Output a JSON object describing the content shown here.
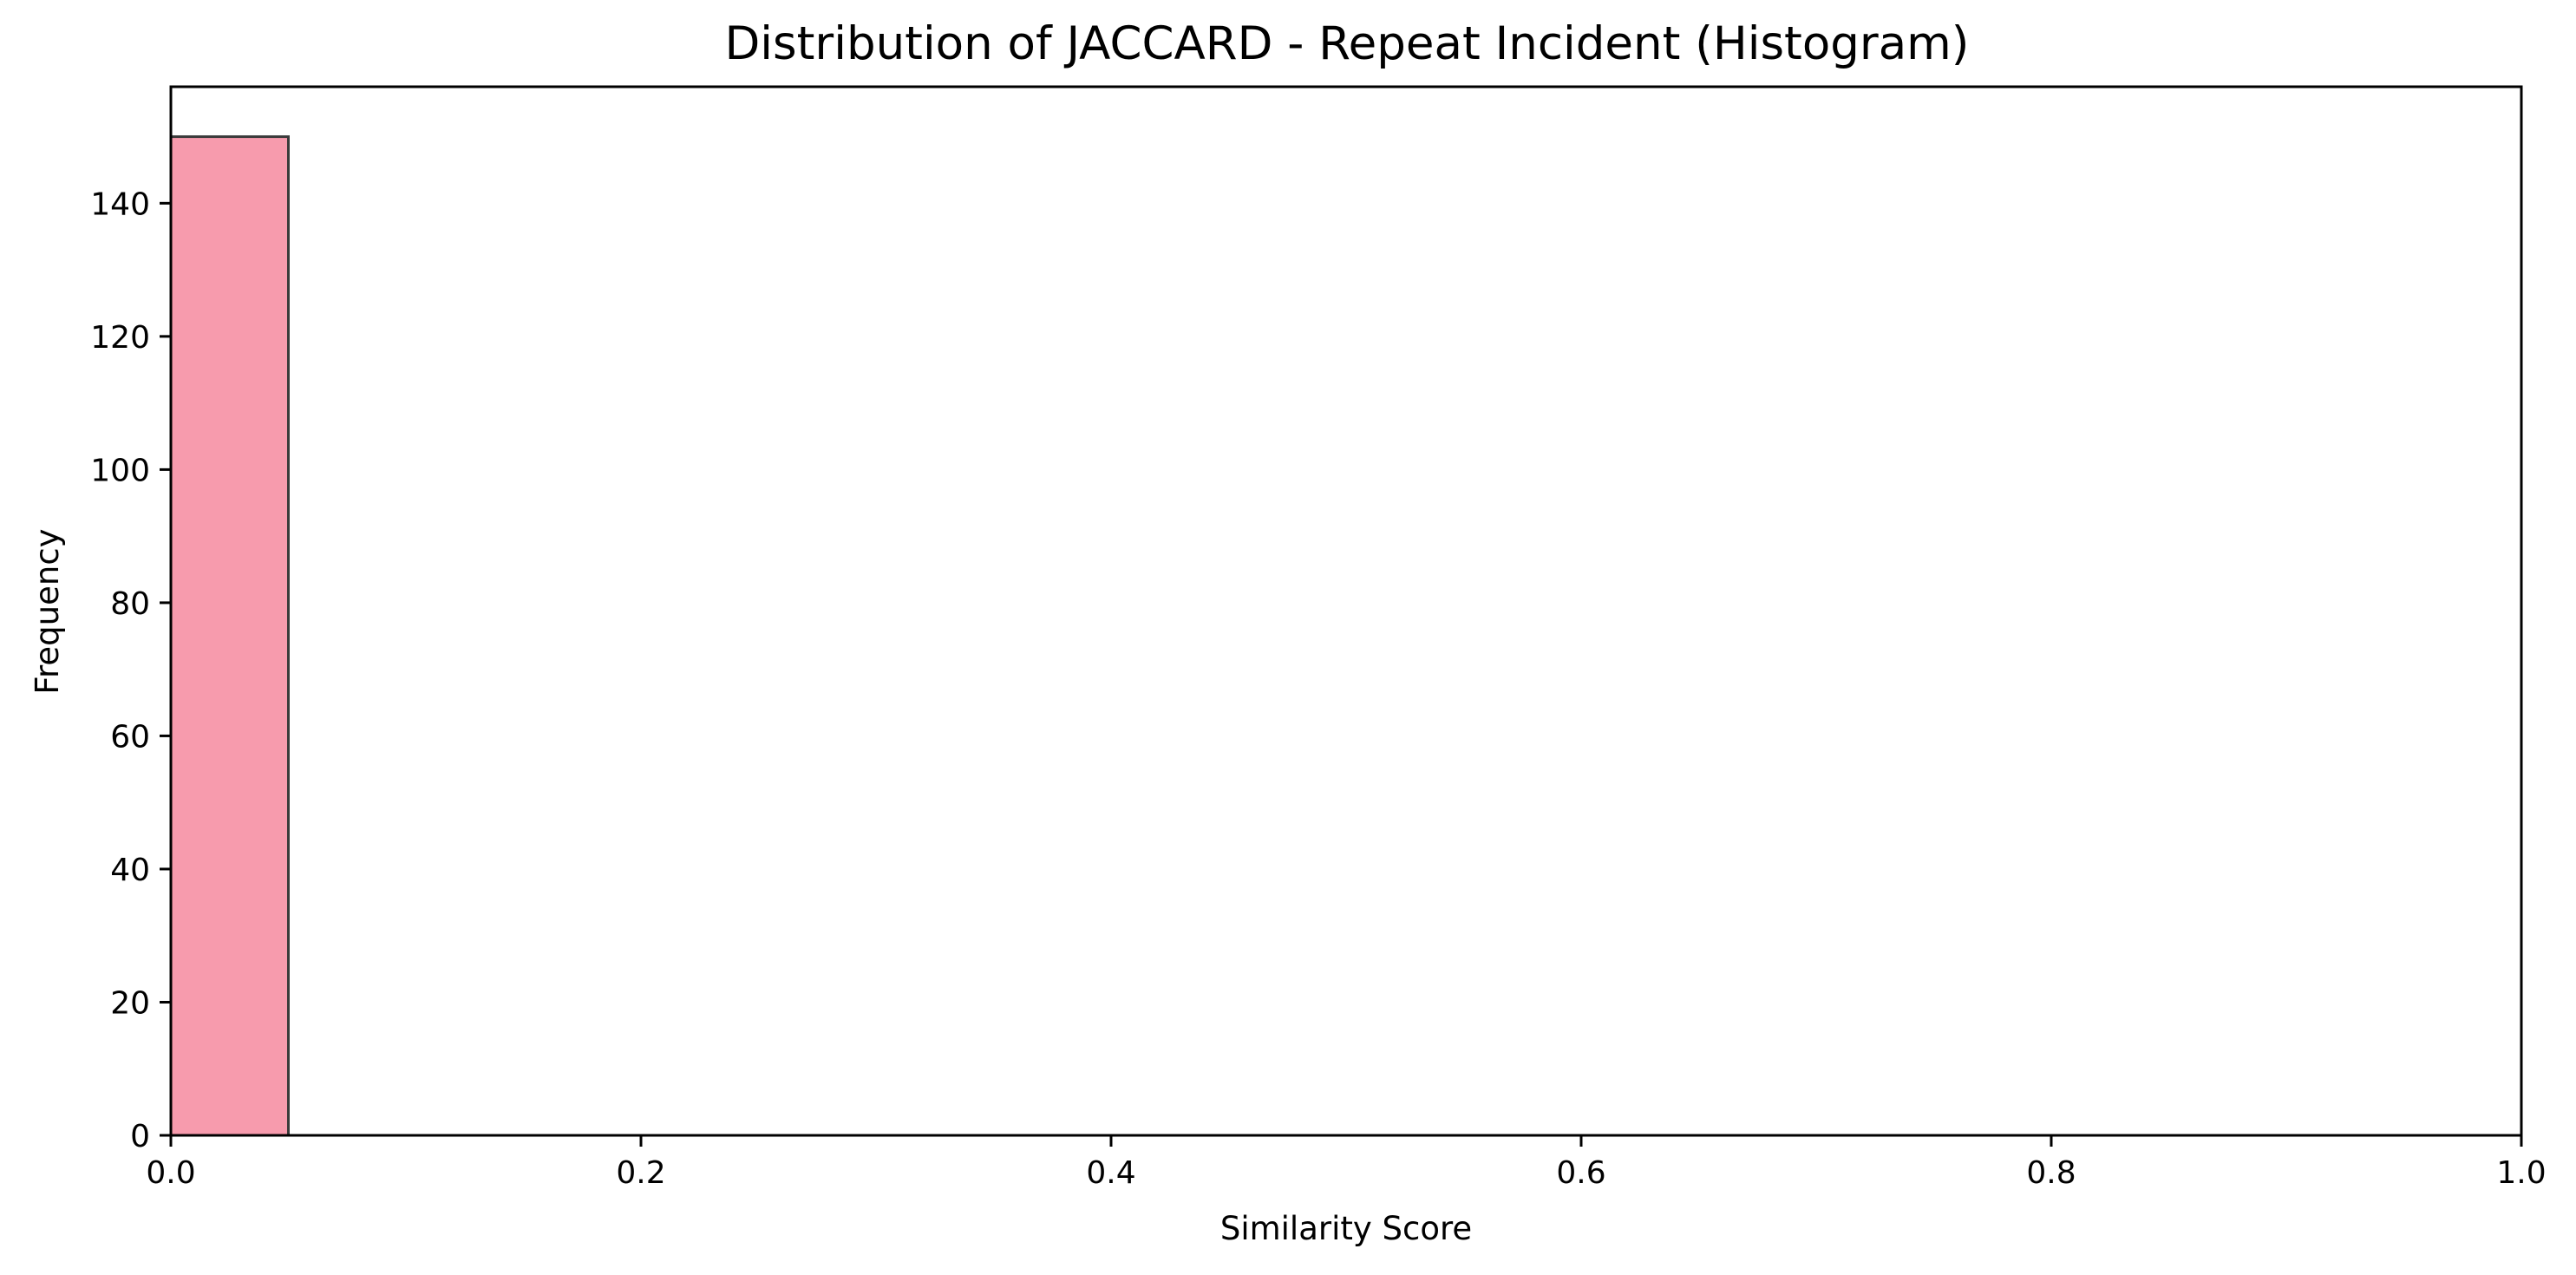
{
  "chart_data": {
    "type": "bar",
    "title": "Distribution of JACCARD - Repeat Incident (Histogram)",
    "xlabel": "Similarity Score",
    "ylabel": "Frequency",
    "xlim": [
      0.0,
      1.0
    ],
    "ylim": [
      0,
      157.5
    ],
    "x_ticks": [
      "0.0",
      "0.2",
      "0.4",
      "0.6",
      "0.8",
      "1.0"
    ],
    "y_ticks": [
      "0",
      "20",
      "40",
      "60",
      "80",
      "100",
      "120",
      "140"
    ],
    "bins": [
      {
        "start": 0.0,
        "end": 0.05,
        "count": 150
      }
    ],
    "bar_color": "#f79bad",
    "bar_edge_color": "#3a3a3a",
    "grid": false,
    "legend": "none"
  }
}
